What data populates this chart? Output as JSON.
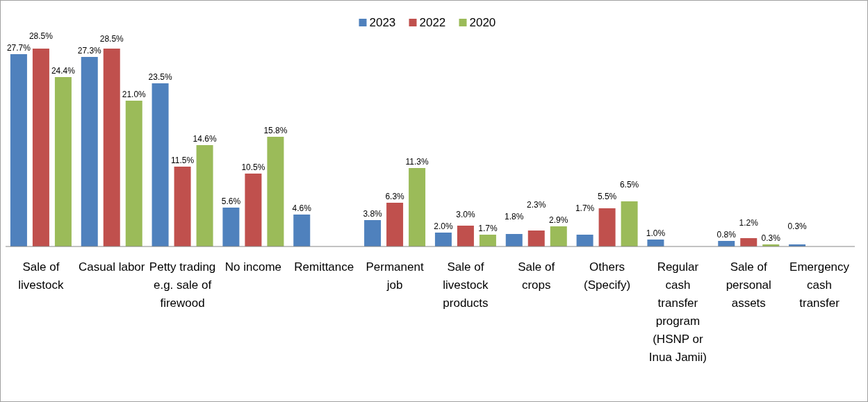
{
  "chart_data": {
    "type": "bar",
    "categories": [
      "Sale of livestock",
      "Casual labor",
      "Petty trading e.g. sale of firewood",
      "No income",
      "Remittance",
      "Permanent job",
      "Sale of livestock products",
      "Sale of crops",
      "Others (Specify)",
      "Regular cash transfer program (HSNP or Inua Jamii)",
      "Sale of personal assets",
      "Emergency cash transfer"
    ],
    "series": [
      {
        "name": "2023",
        "color": "#4f81bd",
        "values": [
          27.7,
          27.3,
          23.5,
          5.6,
          4.6,
          3.8,
          2.0,
          1.8,
          1.7,
          1.0,
          0.8,
          0.3
        ],
        "value_labels": [
          "27.7%",
          "27.3%",
          "23.5%",
          "5.6%",
          "4.6%",
          "3.8%",
          "2.0%",
          "1.8%",
          "1.7%",
          "1.0%",
          "0.8%",
          "0.3%"
        ]
      },
      {
        "name": "2022",
        "color": "#c0504d",
        "values": [
          28.5,
          28.5,
          11.5,
          10.5,
          null,
          6.3,
          3.0,
          2.3,
          5.5,
          null,
          1.2,
          null
        ],
        "value_labels": [
          "28.5%",
          "28.5%",
          "11.5%",
          "10.5%",
          null,
          "6.3%",
          "3.0%",
          "2.3%",
          "5.5%",
          null,
          "1.2%",
          null
        ]
      },
      {
        "name": "2020",
        "color": "#9bbb59",
        "values": [
          24.4,
          21.0,
          14.6,
          15.8,
          null,
          11.3,
          1.7,
          2.9,
          6.5,
          null,
          0.3,
          null
        ],
        "value_labels": [
          "24.4%",
          "21.0%",
          "14.6%",
          "15.8%",
          null,
          "11.3%",
          "1.7%",
          "2.9%",
          "6.5%",
          null,
          "0.3%",
          null
        ]
      }
    ],
    "legend": "top"
  }
}
